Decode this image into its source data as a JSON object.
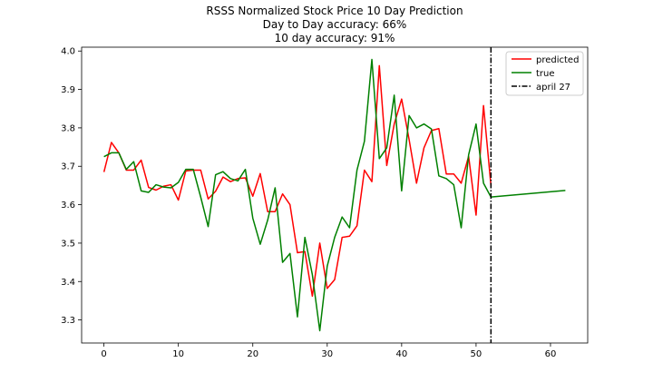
{
  "chart_data": {
    "type": "line",
    "title_lines": [
      "RSSS Normalized Stock Price 10 Day Prediction",
      "Day to Day accuracy: 66%",
      "10 day accuracy: 91%"
    ],
    "xlim": [
      -3,
      65
    ],
    "ylim": [
      3.24,
      4.01
    ],
    "xticks": [
      0,
      10,
      20,
      30,
      40,
      50,
      60
    ],
    "yticks": [
      3.3,
      3.4,
      3.5,
      3.6,
      3.7,
      3.8,
      3.9,
      4.0
    ],
    "xtick_labels": [
      "0",
      "10",
      "20",
      "30",
      "40",
      "50",
      "60"
    ],
    "ytick_labels": [
      "3.3",
      "3.4",
      "3.5",
      "3.6",
      "3.7",
      "3.8",
      "3.9",
      "4.0"
    ],
    "grid": false,
    "legend_position": "top-right",
    "series": [
      {
        "name": "predicted",
        "color": "#ff0000",
        "x": [
          0,
          1,
          2,
          3,
          4,
          5,
          6,
          7,
          8,
          9,
          10,
          11,
          12,
          13,
          14,
          15,
          16,
          17,
          18,
          19,
          20,
          21,
          22,
          23,
          24,
          25,
          26,
          27,
          28,
          29,
          30,
          31,
          32,
          33,
          34,
          35,
          36,
          37,
          38,
          39,
          40,
          41,
          42,
          43,
          44,
          45,
          46,
          47,
          48,
          49,
          50,
          51,
          52
        ],
        "y": [
          3.685,
          3.762,
          3.735,
          3.69,
          3.69,
          3.716,
          3.645,
          3.638,
          3.648,
          3.652,
          3.612,
          3.688,
          3.69,
          3.69,
          3.615,
          3.635,
          3.672,
          3.66,
          3.668,
          3.67,
          3.622,
          3.681,
          3.582,
          3.582,
          3.628,
          3.6,
          3.475,
          3.478,
          3.362,
          3.5,
          3.382,
          3.405,
          3.515,
          3.518,
          3.545,
          3.69,
          3.66,
          3.962,
          3.702,
          3.81,
          3.875,
          3.77,
          3.656,
          3.748,
          3.793,
          3.798,
          3.68,
          3.68,
          3.656,
          3.726,
          3.573,
          3.858,
          3.65
        ]
      },
      {
        "name": "true",
        "color": "#008000",
        "x": [
          0,
          1,
          2,
          3,
          4,
          5,
          6,
          7,
          8,
          9,
          10,
          11,
          12,
          13,
          14,
          15,
          16,
          17,
          18,
          19,
          20,
          21,
          22,
          23,
          24,
          25,
          26,
          27,
          28,
          29,
          30,
          31,
          32,
          33,
          34,
          35,
          36,
          37,
          38,
          39,
          40,
          41,
          42,
          43,
          44,
          45,
          46,
          47,
          48,
          49,
          50,
          51,
          52,
          62
        ],
        "y": [
          3.725,
          3.735,
          3.735,
          3.692,
          3.712,
          3.636,
          3.632,
          3.652,
          3.646,
          3.644,
          3.658,
          3.692,
          3.692,
          3.62,
          3.543,
          3.678,
          3.686,
          3.668,
          3.662,
          3.692,
          3.565,
          3.497,
          3.56,
          3.644,
          3.45,
          3.473,
          3.308,
          3.515,
          3.418,
          3.272,
          3.44,
          3.515,
          3.568,
          3.54,
          3.69,
          3.765,
          3.978,
          3.72,
          3.748,
          3.885,
          3.636,
          3.832,
          3.8,
          3.81,
          3.797,
          3.675,
          3.668,
          3.652,
          3.54,
          3.73,
          3.81,
          3.656,
          3.62,
          3.637
        ]
      }
    ],
    "vline": {
      "name": "april 27",
      "x": 52,
      "color": "#000000",
      "style": "dashdot"
    }
  }
}
